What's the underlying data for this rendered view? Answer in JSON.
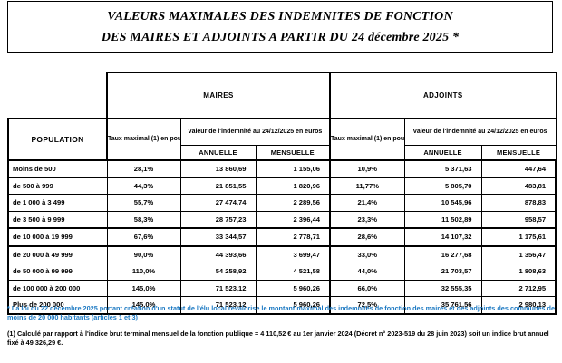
{
  "title": {
    "line1": "VALEURS MAXIMALES DES INDEMNITES DE FONCTION",
    "line2": "DES MAIRES ET ADJOINTS A PARTIR DU 24 décembre 2025 *"
  },
  "table": {
    "population_header": "POPULATION",
    "maires_label": "MAIRES",
    "adjoints_label": "ADJOINTS",
    "taux_header": "Taux maximal (1) en pourcentage",
    "valeur_header": "Valeur de l'indemnité au 24/12/2025 en euros",
    "annuelle_label": "ANNUELLE",
    "mensuelle_label": "MENSUELLE",
    "rows": [
      {
        "population": "Moins de 500",
        "maires_taux": "28,1%",
        "maires_annuelle": "13 860,69",
        "maires_mensuelle": "1 155,06",
        "adjoints_taux": "10,9%",
        "adjoints_annuelle": "5 371,63",
        "adjoints_mensuelle": "447,64"
      },
      {
        "population": "de 500 à 999",
        "maires_taux": "44,3%",
        "maires_annuelle": "21 851,55",
        "maires_mensuelle": "1 820,96",
        "adjoints_taux": "11,77%",
        "adjoints_annuelle": "5 805,70",
        "adjoints_mensuelle": "483,81"
      },
      {
        "population": "de 1 000 à 3 499",
        "maires_taux": "55,7%",
        "maires_annuelle": "27 474,74",
        "maires_mensuelle": "2 289,56",
        "adjoints_taux": "21,4%",
        "adjoints_annuelle": "10 545,96",
        "adjoints_mensuelle": "878,83"
      },
      {
        "population": "de 3 500 à 9 999",
        "maires_taux": "58,3%",
        "maires_annuelle": "28 757,23",
        "maires_mensuelle": "2 396,44",
        "adjoints_taux": "23,3%",
        "adjoints_annuelle": "11 502,89",
        "adjoints_mensuelle": "958,57"
      },
      {
        "population": "de 10 000 à 19 999",
        "maires_taux": "67,6%",
        "maires_annuelle": "33 344,57",
        "maires_mensuelle": "2 778,71",
        "adjoints_taux": "28,6%",
        "adjoints_annuelle": "14 107,32",
        "adjoints_mensuelle": "1 175,61"
      },
      {
        "population": "de 20 000 à 49 999",
        "maires_taux": "90,0%",
        "maires_annuelle": "44 393,66",
        "maires_mensuelle": "3 699,47",
        "adjoints_taux": "33,0%",
        "adjoints_annuelle": "16 277,68",
        "adjoints_mensuelle": "1 356,47"
      },
      {
        "population": "de 50 000 à 99 999",
        "maires_taux": "110,0%",
        "maires_annuelle": "54 258,92",
        "maires_mensuelle": "4 521,58",
        "adjoints_taux": "44,0%",
        "adjoints_annuelle": "21 703,57",
        "adjoints_mensuelle": "1 808,63"
      },
      {
        "population": "de 100 000 à 200 000",
        "maires_taux": "145,0%",
        "maires_annuelle": "71 523,12",
        "maires_mensuelle": "5 960,26",
        "adjoints_taux": "66,0%",
        "adjoints_annuelle": "32 555,35",
        "adjoints_mensuelle": "2 712,95"
      },
      {
        "population": "Plus de 200 000",
        "maires_taux": "145,0%",
        "maires_annuelle": "71 523,12",
        "maires_mensuelle": "5 960,26",
        "adjoints_taux": "72,5%",
        "adjoints_annuelle": "35 761,56",
        "adjoints_mensuelle": "2 980,13"
      }
    ]
  },
  "footnotes": {
    "law_note": "* La loi du 22 décembre 2025 portant création d'un statut de l'élu local revalorise le montant maximal des indemnités de fonction des maires et des adjoints des communes de moins de 20 000 habitants (articles 1 et 3)",
    "calc_note": "(1) Calculé par rapport à l'indice brut terminal mensuel de la fonction publique = 4 110,52 € au 1er janvier 2024 (Décret n° 2023-519 du 28 juin 2023) soit un indice brut annuel fixé à 49 326,29 €."
  },
  "colors": {
    "note_blue": "#1a78c2",
    "text_black": "#000000",
    "border_black": "#000000"
  }
}
